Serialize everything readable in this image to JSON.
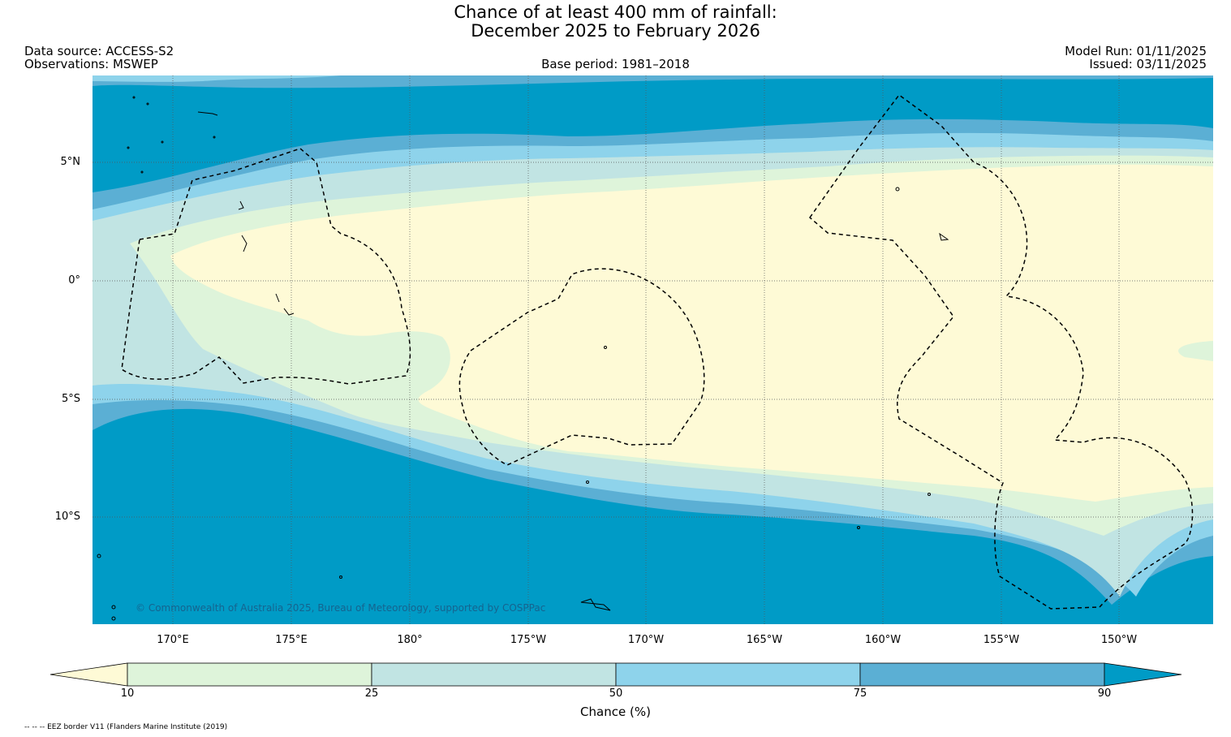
{
  "title": {
    "line1": "Chance of at least 400 mm of rainfall:",
    "line2": "December 2025 to February 2026"
  },
  "header": {
    "data_source": "Data source: ACCESS-S2",
    "observations": "Observations: MSWEP",
    "base_period": "Base period: 1981–2018",
    "model_run": "Model Run: 01/11/2025",
    "issued": "Issued: 03/11/2025"
  },
  "map": {
    "lat_labels": [
      "5°N",
      "0°",
      "5°S",
      "10°S"
    ],
    "lon_labels": [
      "170°E",
      "175°E",
      "180°",
      "175°W",
      "170°W",
      "165°W",
      "160°W",
      "155°W",
      "150°W"
    ],
    "copyright": "© Commonwealth of Australia 2025, Bureau of Meteorology, supported by COSPPac"
  },
  "colorbar": {
    "ticks": [
      "10",
      "25",
      "50",
      "75",
      "90"
    ],
    "label": "Chance (%)",
    "colors": {
      "under_10": "#fefad6",
      "c10_25": "#def4da",
      "c25_50": "#c1e4e3",
      "c50_75": "#8ed3eb",
      "c75_90": "#5bafd4",
      "over_90": "#009bc6"
    }
  },
  "footnote": "-- -- -- EEZ border V11 (Flanders Marine Institute (2019)"
}
